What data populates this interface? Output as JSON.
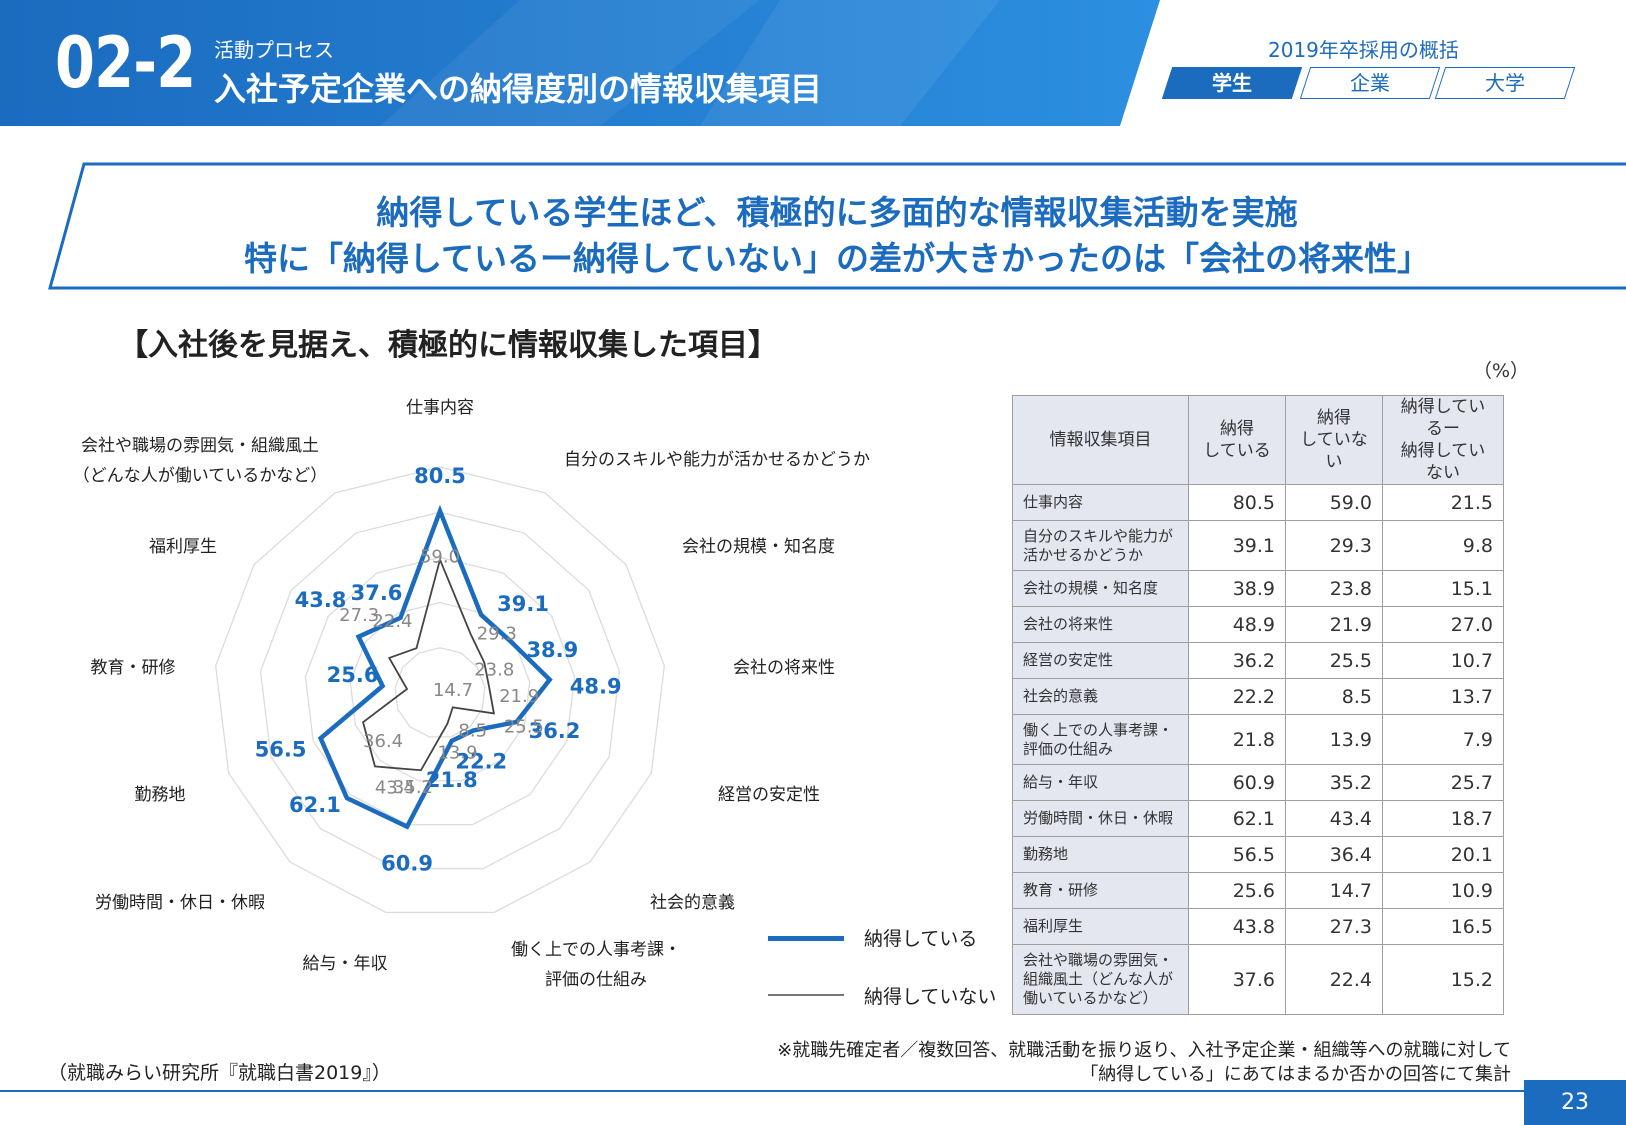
{
  "header": {
    "section_number": "02-2",
    "process": "活動プロセス",
    "title": "入社予定企業への納得度別の情報収集項目",
    "overview": "2019年卒採用の概括",
    "tabs": [
      "学生",
      "企業",
      "大学"
    ],
    "active_tab": "学生"
  },
  "banner": {
    "line1": "納得している学生ほど、積極的に多面的な情報収集活動を実施",
    "line2": "特に「納得しているー納得していない」の差が大きかったのは「会社の将来性」"
  },
  "sub_heading": "【入社後を見据え、積極的に情報収集した項目】",
  "unit": "（%）",
  "chart_data": {
    "type": "radar",
    "categories": [
      "仕事内容",
      "自分のスキルや能力が活かせるかどうか",
      "会社の規模・知名度",
      "会社の将来性",
      "経営の安定性",
      "社会的意義",
      "働く上での人事考課・評価の仕組み",
      "給与・年収",
      "労働時間・休日・休暇",
      "勤務地",
      "教育・研修",
      "福利厚生",
      "会社や職場の雰囲気・組織風土（どんな人が働いているかなど）"
    ],
    "axis_labels": [
      [
        "仕事内容"
      ],
      [
        "自分のスキルや能力が活かせるかどうか"
      ],
      [
        "会社の規模・知名度"
      ],
      [
        "会社の将来性"
      ],
      [
        "経営の安定性"
      ],
      [
        "社会的意義"
      ],
      [
        "働く上での人事考課・",
        "評価の仕組み"
      ],
      [
        "給与・年収"
      ],
      [
        "労働時間・休日・休暇"
      ],
      [
        "勤務地"
      ],
      [
        "教育・研修"
      ],
      [
        "福利厚生"
      ],
      [
        "会社や職場の雰囲気・組織風土",
        "（どんな人が働いているかなど）"
      ]
    ],
    "series": [
      {
        "name": "納得している",
        "color": "#1b6bbf",
        "values": [
          80.5,
          39.1,
          38.9,
          48.9,
          36.2,
          22.2,
          21.8,
          60.9,
          62.1,
          56.5,
          25.6,
          43.8,
          37.6
        ]
      },
      {
        "name": "納得していない",
        "color": "#444444",
        "values": [
          59.0,
          29.3,
          23.8,
          21.9,
          25.5,
          8.5,
          13.9,
          35.2,
          43.4,
          36.4,
          14.7,
          27.3,
          22.4
        ]
      }
    ],
    "rmax": 100,
    "grid_rings": [
      20,
      40,
      60,
      80,
      100
    ],
    "legend_position": "bottom-right"
  },
  "table": {
    "headers": [
      "情報収集項目",
      "納得\nしている",
      "納得\nしていない",
      "納得しているー\n納得していない"
    ],
    "rows": [
      {
        "item": "仕事内容",
        "a": "80.5",
        "b": "59.0",
        "diff": "21.5"
      },
      {
        "item": "自分のスキルや能力が\n活かせるかどうか",
        "a": "39.1",
        "b": "29.3",
        "diff": "9.8"
      },
      {
        "item": "会社の規模・知名度",
        "a": "38.9",
        "b": "23.8",
        "diff": "15.1"
      },
      {
        "item": "会社の将来性",
        "a": "48.9",
        "b": "21.9",
        "diff": "27.0"
      },
      {
        "item": "経営の安定性",
        "a": "36.2",
        "b": "25.5",
        "diff": "10.7"
      },
      {
        "item": "社会的意義",
        "a": "22.2",
        "b": "8.5",
        "diff": "13.7"
      },
      {
        "item": "働く上での人事考課・\n評価の仕組み",
        "a": "21.8",
        "b": "13.9",
        "diff": "7.9"
      },
      {
        "item": "給与・年収",
        "a": "60.9",
        "b": "35.2",
        "diff": "25.7"
      },
      {
        "item": "労働時間・休日・休暇",
        "a": "62.1",
        "b": "43.4",
        "diff": "18.7"
      },
      {
        "item": "勤務地",
        "a": "56.5",
        "b": "36.4",
        "diff": "20.1"
      },
      {
        "item": "教育・研修",
        "a": "25.6",
        "b": "14.7",
        "diff": "10.9"
      },
      {
        "item": "福利厚生",
        "a": "43.8",
        "b": "27.3",
        "diff": "16.5"
      },
      {
        "item": "会社や職場の雰囲気・\n組織風土（どんな人が\n働いているかなど）",
        "a": "37.6",
        "b": "22.4",
        "diff": "15.2"
      }
    ]
  },
  "notes": {
    "line1": "※就職先確定者／複数回答、就職活動を振り返り、入社予定企業・組織等への就職に対して",
    "line2": "「納得している」にあてはまるか否かの回答にて集計"
  },
  "source": "（就職みらい研究所『就職白書2019』）",
  "page_number": "23",
  "colors": {
    "accent": "#1b6bbf",
    "header_blue": "#1e7fd6",
    "table_header_bg": "#e4e7f0"
  }
}
